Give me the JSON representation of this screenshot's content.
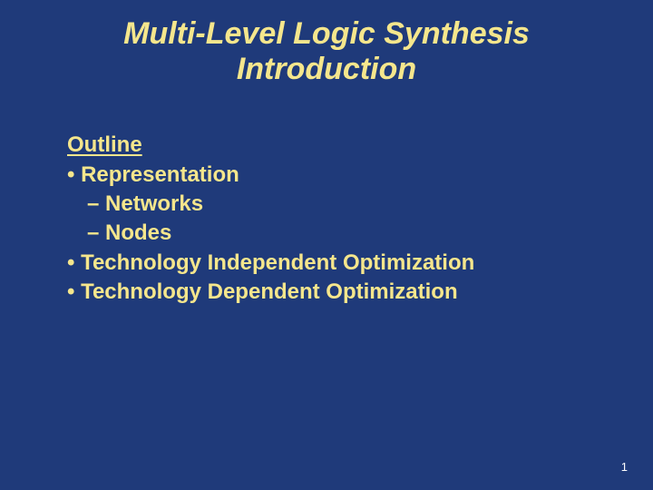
{
  "colors": {
    "background": "#1f3a7a",
    "text_primary": "#f5e68c",
    "page_number": "#ffffff"
  },
  "typography": {
    "title_fontsize": 34,
    "body_fontsize": 24,
    "page_number_fontsize": 13,
    "font_family": "Comic Sans MS"
  },
  "title": {
    "line1": "Multi-Level Logic Synthesis",
    "line2": "Introduction"
  },
  "outline": {
    "heading": "Outline",
    "items": [
      {
        "label": "• Representation",
        "subitems": [
          {
            "label": "– Networks"
          },
          {
            "label": "– Nodes"
          }
        ]
      },
      {
        "label": "• Technology Independent Optimization",
        "subitems": []
      },
      {
        "label": "• Technology Dependent Optimization",
        "subitems": []
      }
    ]
  },
  "page_number": "1"
}
